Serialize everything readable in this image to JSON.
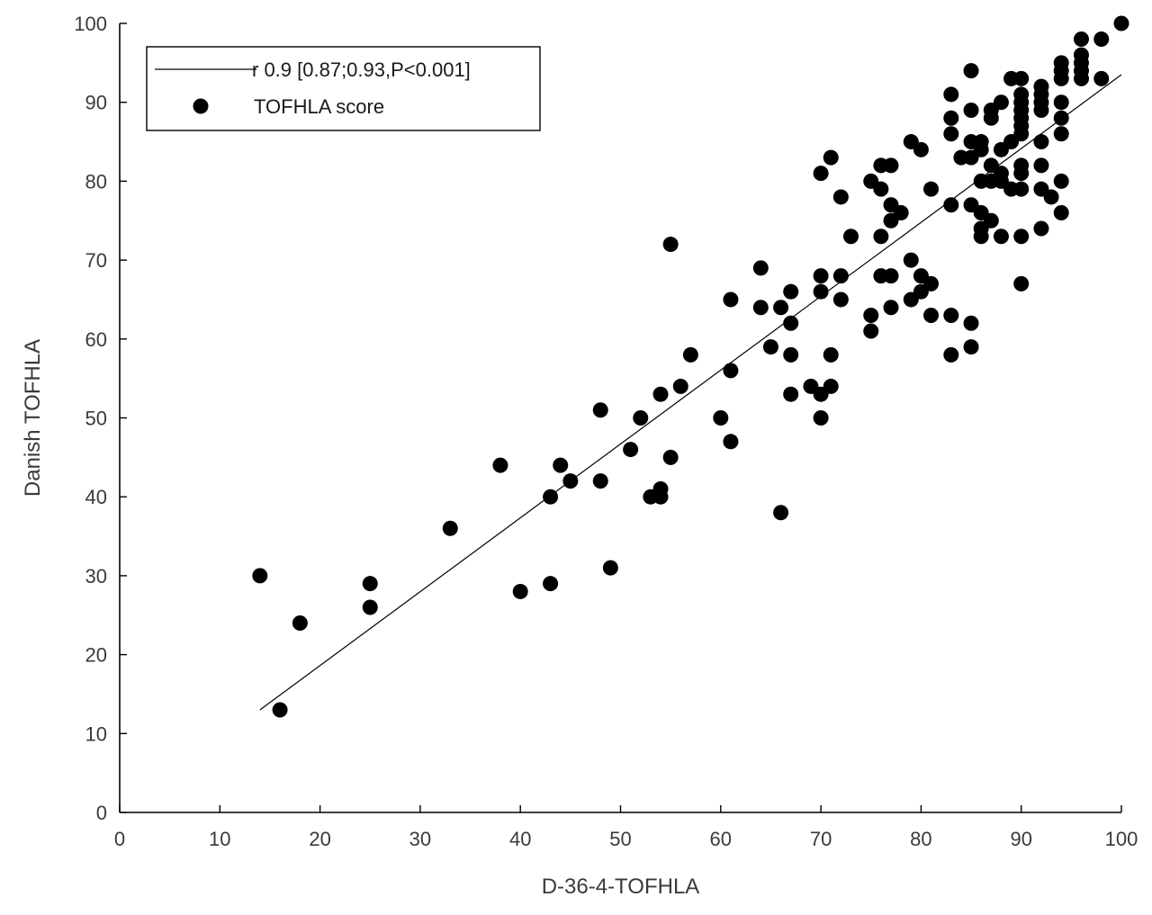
{
  "chart_data": {
    "type": "scatter",
    "title": "",
    "xlabel": "D-36-4-TOFHLA",
    "ylabel": "Danish TOFHLA",
    "xlim": [
      0,
      100
    ],
    "ylim": [
      0,
      100
    ],
    "xticks": [
      0,
      10,
      20,
      30,
      40,
      50,
      60,
      70,
      80,
      90,
      100
    ],
    "yticks": [
      0,
      10,
      20,
      30,
      40,
      50,
      60,
      70,
      80,
      90,
      100
    ],
    "grid": false,
    "legend": {
      "placement": "top-left",
      "entries": [
        {
          "label": "r 0.9 [0.87;0.93,P<0.001]",
          "marker": "line"
        },
        {
          "label": "TOFHLA score",
          "marker": "dot"
        }
      ]
    },
    "fit_line": {
      "x": [
        14,
        100
      ],
      "y": [
        13.0,
        93.5
      ]
    },
    "series": [
      {
        "name": "TOFHLA score",
        "color": "#000000",
        "points": [
          [
            14,
            30
          ],
          [
            16,
            13
          ],
          [
            18,
            24
          ],
          [
            25,
            29
          ],
          [
            25,
            26
          ],
          [
            33,
            36
          ],
          [
            38,
            44
          ],
          [
            40,
            28
          ],
          [
            43,
            40
          ],
          [
            43,
            29
          ],
          [
            44,
            44
          ],
          [
            45,
            42
          ],
          [
            48,
            51
          ],
          [
            48,
            42
          ],
          [
            49,
            31
          ],
          [
            51,
            46
          ],
          [
            52,
            50
          ],
          [
            53,
            40
          ],
          [
            54,
            53
          ],
          [
            54,
            41
          ],
          [
            54,
            40
          ],
          [
            55,
            45
          ],
          [
            55,
            72
          ],
          [
            56,
            54
          ],
          [
            57,
            58
          ],
          [
            60,
            50
          ],
          [
            61,
            65
          ],
          [
            61,
            56
          ],
          [
            61,
            47
          ],
          [
            64,
            69
          ],
          [
            64,
            64
          ],
          [
            65,
            59
          ],
          [
            66,
            38
          ],
          [
            66,
            64
          ],
          [
            67,
            66
          ],
          [
            67,
            62
          ],
          [
            67,
            58
          ],
          [
            67,
            53
          ],
          [
            69,
            54
          ],
          [
            70,
            81
          ],
          [
            70,
            68
          ],
          [
            70,
            66
          ],
          [
            70,
            53
          ],
          [
            70,
            50
          ],
          [
            71,
            83
          ],
          [
            71,
            58
          ],
          [
            71,
            54
          ],
          [
            72,
            78
          ],
          [
            72,
            68
          ],
          [
            72,
            65
          ],
          [
            73,
            73
          ],
          [
            75,
            80
          ],
          [
            75,
            63
          ],
          [
            75,
            61
          ],
          [
            76,
            82
          ],
          [
            76,
            79
          ],
          [
            76,
            73
          ],
          [
            76,
            68
          ],
          [
            77,
            82
          ],
          [
            77,
            77
          ],
          [
            77,
            75
          ],
          [
            77,
            68
          ],
          [
            77,
            64
          ],
          [
            78,
            76
          ],
          [
            79,
            85
          ],
          [
            79,
            70
          ],
          [
            79,
            65
          ],
          [
            80,
            84
          ],
          [
            80,
            68
          ],
          [
            80,
            66
          ],
          [
            81,
            79
          ],
          [
            81,
            67
          ],
          [
            81,
            63
          ],
          [
            83,
            91
          ],
          [
            83,
            88
          ],
          [
            83,
            86
          ],
          [
            83,
            77
          ],
          [
            83,
            63
          ],
          [
            83,
            58
          ],
          [
            84,
            83
          ],
          [
            85,
            94
          ],
          [
            85,
            89
          ],
          [
            85,
            85
          ],
          [
            85,
            83
          ],
          [
            85,
            77
          ],
          [
            85,
            62
          ],
          [
            85,
            59
          ],
          [
            86,
            85
          ],
          [
            86,
            84
          ],
          [
            86,
            80
          ],
          [
            86,
            76
          ],
          [
            86,
            74
          ],
          [
            86,
            73
          ],
          [
            87,
            89
          ],
          [
            87,
            88
          ],
          [
            87,
            82
          ],
          [
            87,
            80
          ],
          [
            87,
            75
          ],
          [
            88,
            90
          ],
          [
            88,
            84
          ],
          [
            88,
            81
          ],
          [
            88,
            80
          ],
          [
            88,
            73
          ],
          [
            89,
            93
          ],
          [
            89,
            85
          ],
          [
            89,
            79
          ],
          [
            90,
            93
          ],
          [
            90,
            91
          ],
          [
            90,
            90
          ],
          [
            90,
            89
          ],
          [
            90,
            88
          ],
          [
            90,
            87
          ],
          [
            90,
            86
          ],
          [
            90,
            82
          ],
          [
            90,
            81
          ],
          [
            90,
            79
          ],
          [
            90,
            73
          ],
          [
            90,
            67
          ],
          [
            92,
            92
          ],
          [
            92,
            91
          ],
          [
            92,
            90
          ],
          [
            92,
            89
          ],
          [
            92,
            85
          ],
          [
            92,
            82
          ],
          [
            92,
            79
          ],
          [
            92,
            74
          ],
          [
            93,
            78
          ],
          [
            94,
            95
          ],
          [
            94,
            94
          ],
          [
            94,
            93
          ],
          [
            94,
            90
          ],
          [
            94,
            88
          ],
          [
            94,
            86
          ],
          [
            94,
            80
          ],
          [
            94,
            76
          ],
          [
            96,
            98
          ],
          [
            96,
            96
          ],
          [
            96,
            95
          ],
          [
            96,
            94
          ],
          [
            96,
            93
          ],
          [
            98,
            98
          ],
          [
            98,
            93
          ],
          [
            100,
            100
          ]
        ]
      }
    ]
  }
}
